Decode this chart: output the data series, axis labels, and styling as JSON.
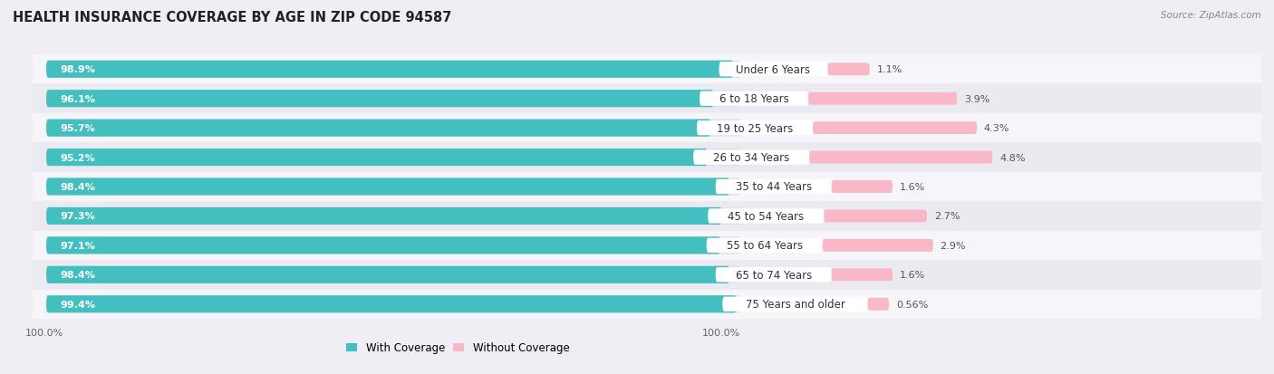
{
  "title": "HEALTH INSURANCE COVERAGE BY AGE IN ZIP CODE 94587",
  "source": "Source: ZipAtlas.com",
  "categories": [
    "Under 6 Years",
    "6 to 18 Years",
    "19 to 25 Years",
    "26 to 34 Years",
    "35 to 44 Years",
    "45 to 54 Years",
    "55 to 64 Years",
    "65 to 74 Years",
    "75 Years and older"
  ],
  "with_coverage": [
    98.9,
    96.1,
    95.7,
    95.2,
    98.4,
    97.3,
    97.1,
    98.4,
    99.4
  ],
  "without_coverage": [
    1.1,
    3.9,
    4.3,
    4.8,
    1.6,
    2.7,
    2.9,
    1.6,
    0.56
  ],
  "with_coverage_labels": [
    "98.9%",
    "96.1%",
    "95.7%",
    "95.2%",
    "98.4%",
    "97.3%",
    "97.1%",
    "98.4%",
    "99.4%"
  ],
  "without_coverage_labels": [
    "1.1%",
    "3.9%",
    "4.3%",
    "4.8%",
    "1.6%",
    "2.7%",
    "2.9%",
    "1.6%",
    "0.56%"
  ],
  "color_with": "#44BFBF",
  "color_without": "#F080A0",
  "color_without_light": "#F8B8C8",
  "bg_color": "#EEEEF4",
  "bar_bg_color": "#E0E0EA",
  "row_bg_light": "#F5F5FA",
  "row_bg_dark": "#EAEAF0",
  "title_fontsize": 10.5,
  "source_fontsize": 7.5,
  "label_fontsize": 8.0,
  "cat_fontsize": 8.5,
  "bar_height": 0.58,
  "total_width": 100,
  "scale": 0.55,
  "legend_label_with": "With Coverage",
  "legend_label_without": "Without Coverage"
}
